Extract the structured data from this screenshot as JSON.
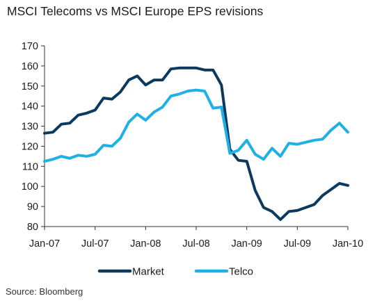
{
  "chart_data": {
    "type": "line",
    "title": "MSCI Telecoms vs MSCI Europe EPS revisions",
    "source": "Source: Bloomberg",
    "xlabel": "",
    "ylabel": "",
    "ylim": [
      80,
      170
    ],
    "yticks": [
      80,
      90,
      100,
      110,
      120,
      130,
      140,
      150,
      160,
      170
    ],
    "xticks": [
      "Jan-07",
      "Jul-07",
      "Jan-08",
      "Jul-08",
      "Jan-09",
      "Jul-09",
      "Jan-10"
    ],
    "grid": false,
    "legend_position": "bottom",
    "x": [
      "Jan-07",
      "Feb-07",
      "Mar-07",
      "Apr-07",
      "May-07",
      "Jun-07",
      "Jul-07",
      "Aug-07",
      "Sep-07",
      "Oct-07",
      "Nov-07",
      "Dec-07",
      "Jan-08",
      "Feb-08",
      "Mar-08",
      "Apr-08",
      "May-08",
      "Jun-08",
      "Jul-08",
      "Aug-08",
      "Sep-08",
      "Oct-08",
      "Nov-08",
      "Dec-08",
      "Jan-09",
      "Feb-09",
      "Mar-09",
      "Apr-09",
      "May-09",
      "Jun-09",
      "Jul-09",
      "Aug-09",
      "Sep-09",
      "Oct-09",
      "Nov-09",
      "Dec-09",
      "Jan-10"
    ],
    "series": [
      {
        "name": "Market",
        "color": "#0b3a5e",
        "values": [
          126.5,
          127,
          131,
          131.5,
          135.5,
          136.5,
          138,
          144,
          143.5,
          147,
          153,
          155,
          150.5,
          153,
          153,
          158.5,
          159,
          159,
          159,
          158,
          158,
          150.5,
          118.5,
          113,
          112.5,
          98,
          89.5,
          87.5,
          83.5,
          87.5,
          88,
          89.5,
          91,
          95.5,
          98.5,
          101.5,
          100.5
        ]
      },
      {
        "name": "Telco",
        "color": "#1fb1e6",
        "values": [
          112.5,
          113.5,
          115,
          114,
          115.5,
          115,
          116,
          120.5,
          120,
          124,
          132,
          136,
          133,
          137,
          139.5,
          145,
          146,
          147.5,
          148,
          147.5,
          139,
          139.5,
          116.5,
          118,
          123,
          116,
          113.5,
          119,
          115,
          121.5,
          121,
          122,
          123,
          123.5,
          128,
          131.5,
          127
        ]
      }
    ]
  }
}
